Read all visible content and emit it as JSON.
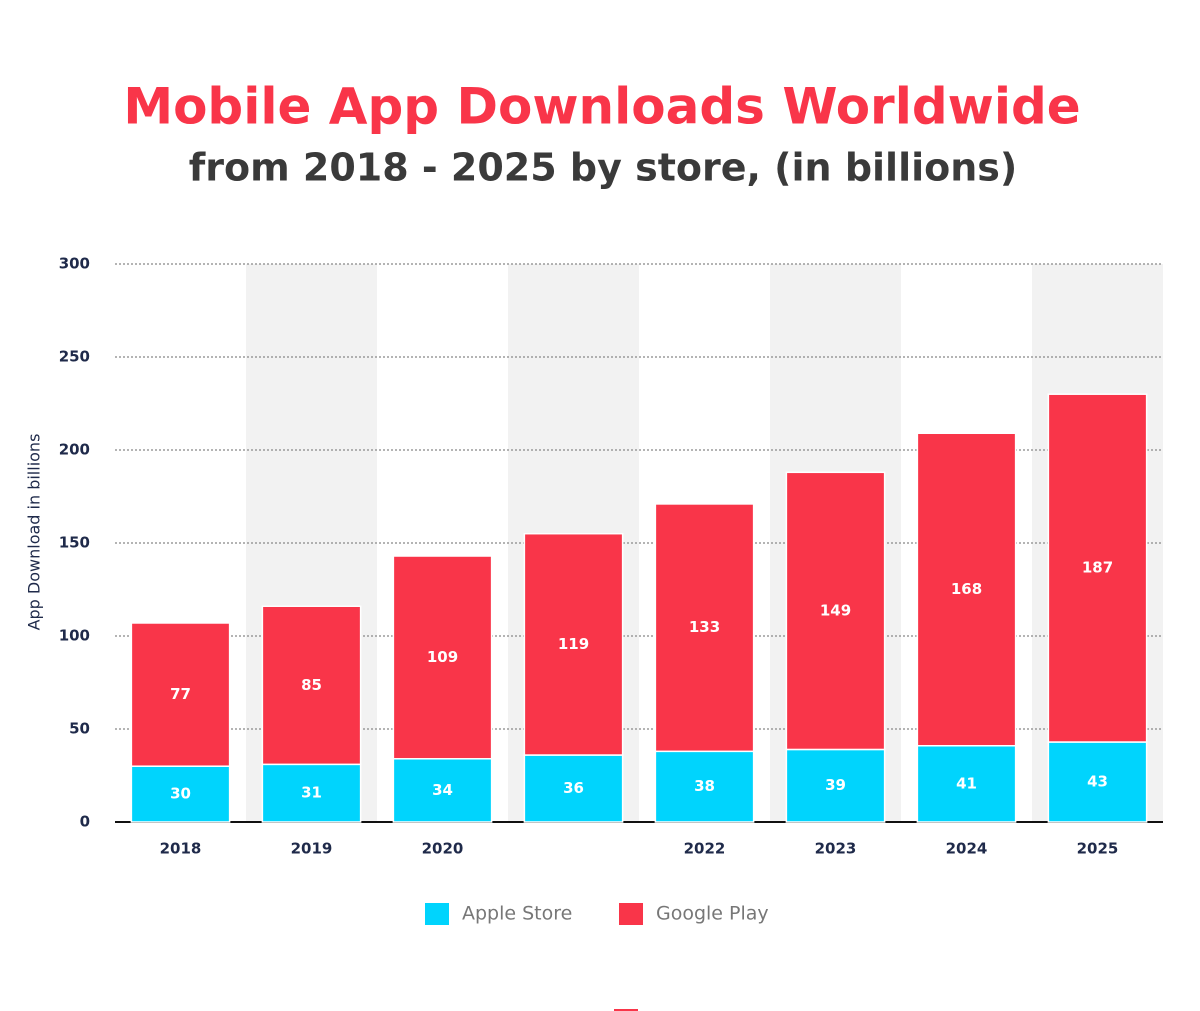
{
  "chart_data": {
    "type": "stacked_bar",
    "title": "Mobile App Downloads Worldwide",
    "subtitle": "from 2018 - 2025 by store, (in billions)",
    "y_label": "App Download in billions",
    "categories": [
      "2018",
      "2019",
      "2020",
      null,
      "2022",
      "2023",
      "2024",
      "2025"
    ],
    "series": [
      {
        "name": "Apple Store",
        "color": "#00d4fd",
        "values": [
          30,
          31,
          34,
          36,
          38,
          39,
          41,
          43
        ]
      },
      {
        "name": "Google Play",
        "color": "#f93549",
        "values": [
          77,
          85,
          109,
          119,
          133,
          149,
          168,
          187
        ]
      }
    ],
    "ylim": [
      0,
      300
    ],
    "yticks": [
      0,
      50,
      100,
      150,
      200,
      250,
      300
    ],
    "grid": true
  }
}
